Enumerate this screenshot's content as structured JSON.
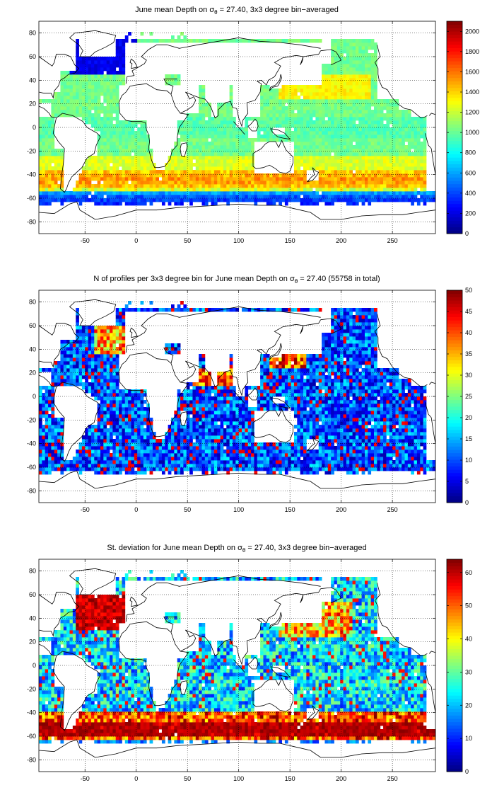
{
  "chart_data": [
    {
      "type": "heatmap",
      "title_prefix": "June mean Depth on ",
      "title_sigma": "σ",
      "title_sub": "θ",
      "title_suffix": " = 27.40, 3x3 degree bin−averaged",
      "xlim": [
        -95,
        292
      ],
      "ylim": [
        -90,
        90
      ],
      "xticks": [
        -50,
        0,
        50,
        100,
        150,
        200,
        250
      ],
      "yticks": [
        80,
        60,
        40,
        20,
        0,
        -20,
        -40,
        -60,
        -80
      ],
      "grid": "dotted",
      "colormap": "jet",
      "clim": [
        0,
        2100
      ],
      "colorbar_ticks": [
        0,
        200,
        400,
        600,
        800,
        1000,
        1200,
        1400,
        1600,
        1800,
        2000
      ],
      "field": "depth",
      "description_of_values": "mean depth (m) of isopycnal; ~900-1100 in subtropics, ~1400-1600 near 40-50S, shallow (<400) in Southern Ocean and subpolar North Atlantic"
    },
    {
      "type": "heatmap",
      "title_prefix": "N of profiles per 3x3 degree bin for June mean Depth on ",
      "title_sigma": "σ",
      "title_sub": "θ",
      "title_suffix": " = 27.40 (55758 in total)",
      "xlim": [
        -95,
        292
      ],
      "ylim": [
        -90,
        90
      ],
      "xticks": [
        -50,
        0,
        50,
        100,
        150,
        200,
        250
      ],
      "yticks": [
        80,
        60,
        40,
        20,
        0,
        -20,
        -40,
        -60,
        -80
      ],
      "grid": "dotted",
      "colormap": "jet",
      "clim": [
        0,
        50
      ],
      "colorbar_ticks": [
        0,
        5,
        10,
        15,
        20,
        25,
        30,
        35,
        40,
        45,
        50
      ],
      "field": "count",
      "total_profiles": 55758
    },
    {
      "type": "heatmap",
      "title_prefix": "St. deviation for June mean Depth on ",
      "title_sigma": "σ",
      "title_sub": "θ",
      "title_suffix": " = 27.40, 3x3 degree bin−averaged",
      "xlim": [
        -95,
        292
      ],
      "ylim": [
        -90,
        90
      ],
      "xticks": [
        -50,
        0,
        50,
        100,
        150,
        200,
        250
      ],
      "yticks": [
        80,
        60,
        40,
        20,
        0,
        -20,
        -40,
        -60,
        -80
      ],
      "grid": "dotted",
      "colormap": "jet",
      "clim": [
        0,
        64
      ],
      "colorbar_ticks": [
        0,
        10,
        20,
        30,
        40,
        50,
        60
      ],
      "field": "std"
    }
  ]
}
